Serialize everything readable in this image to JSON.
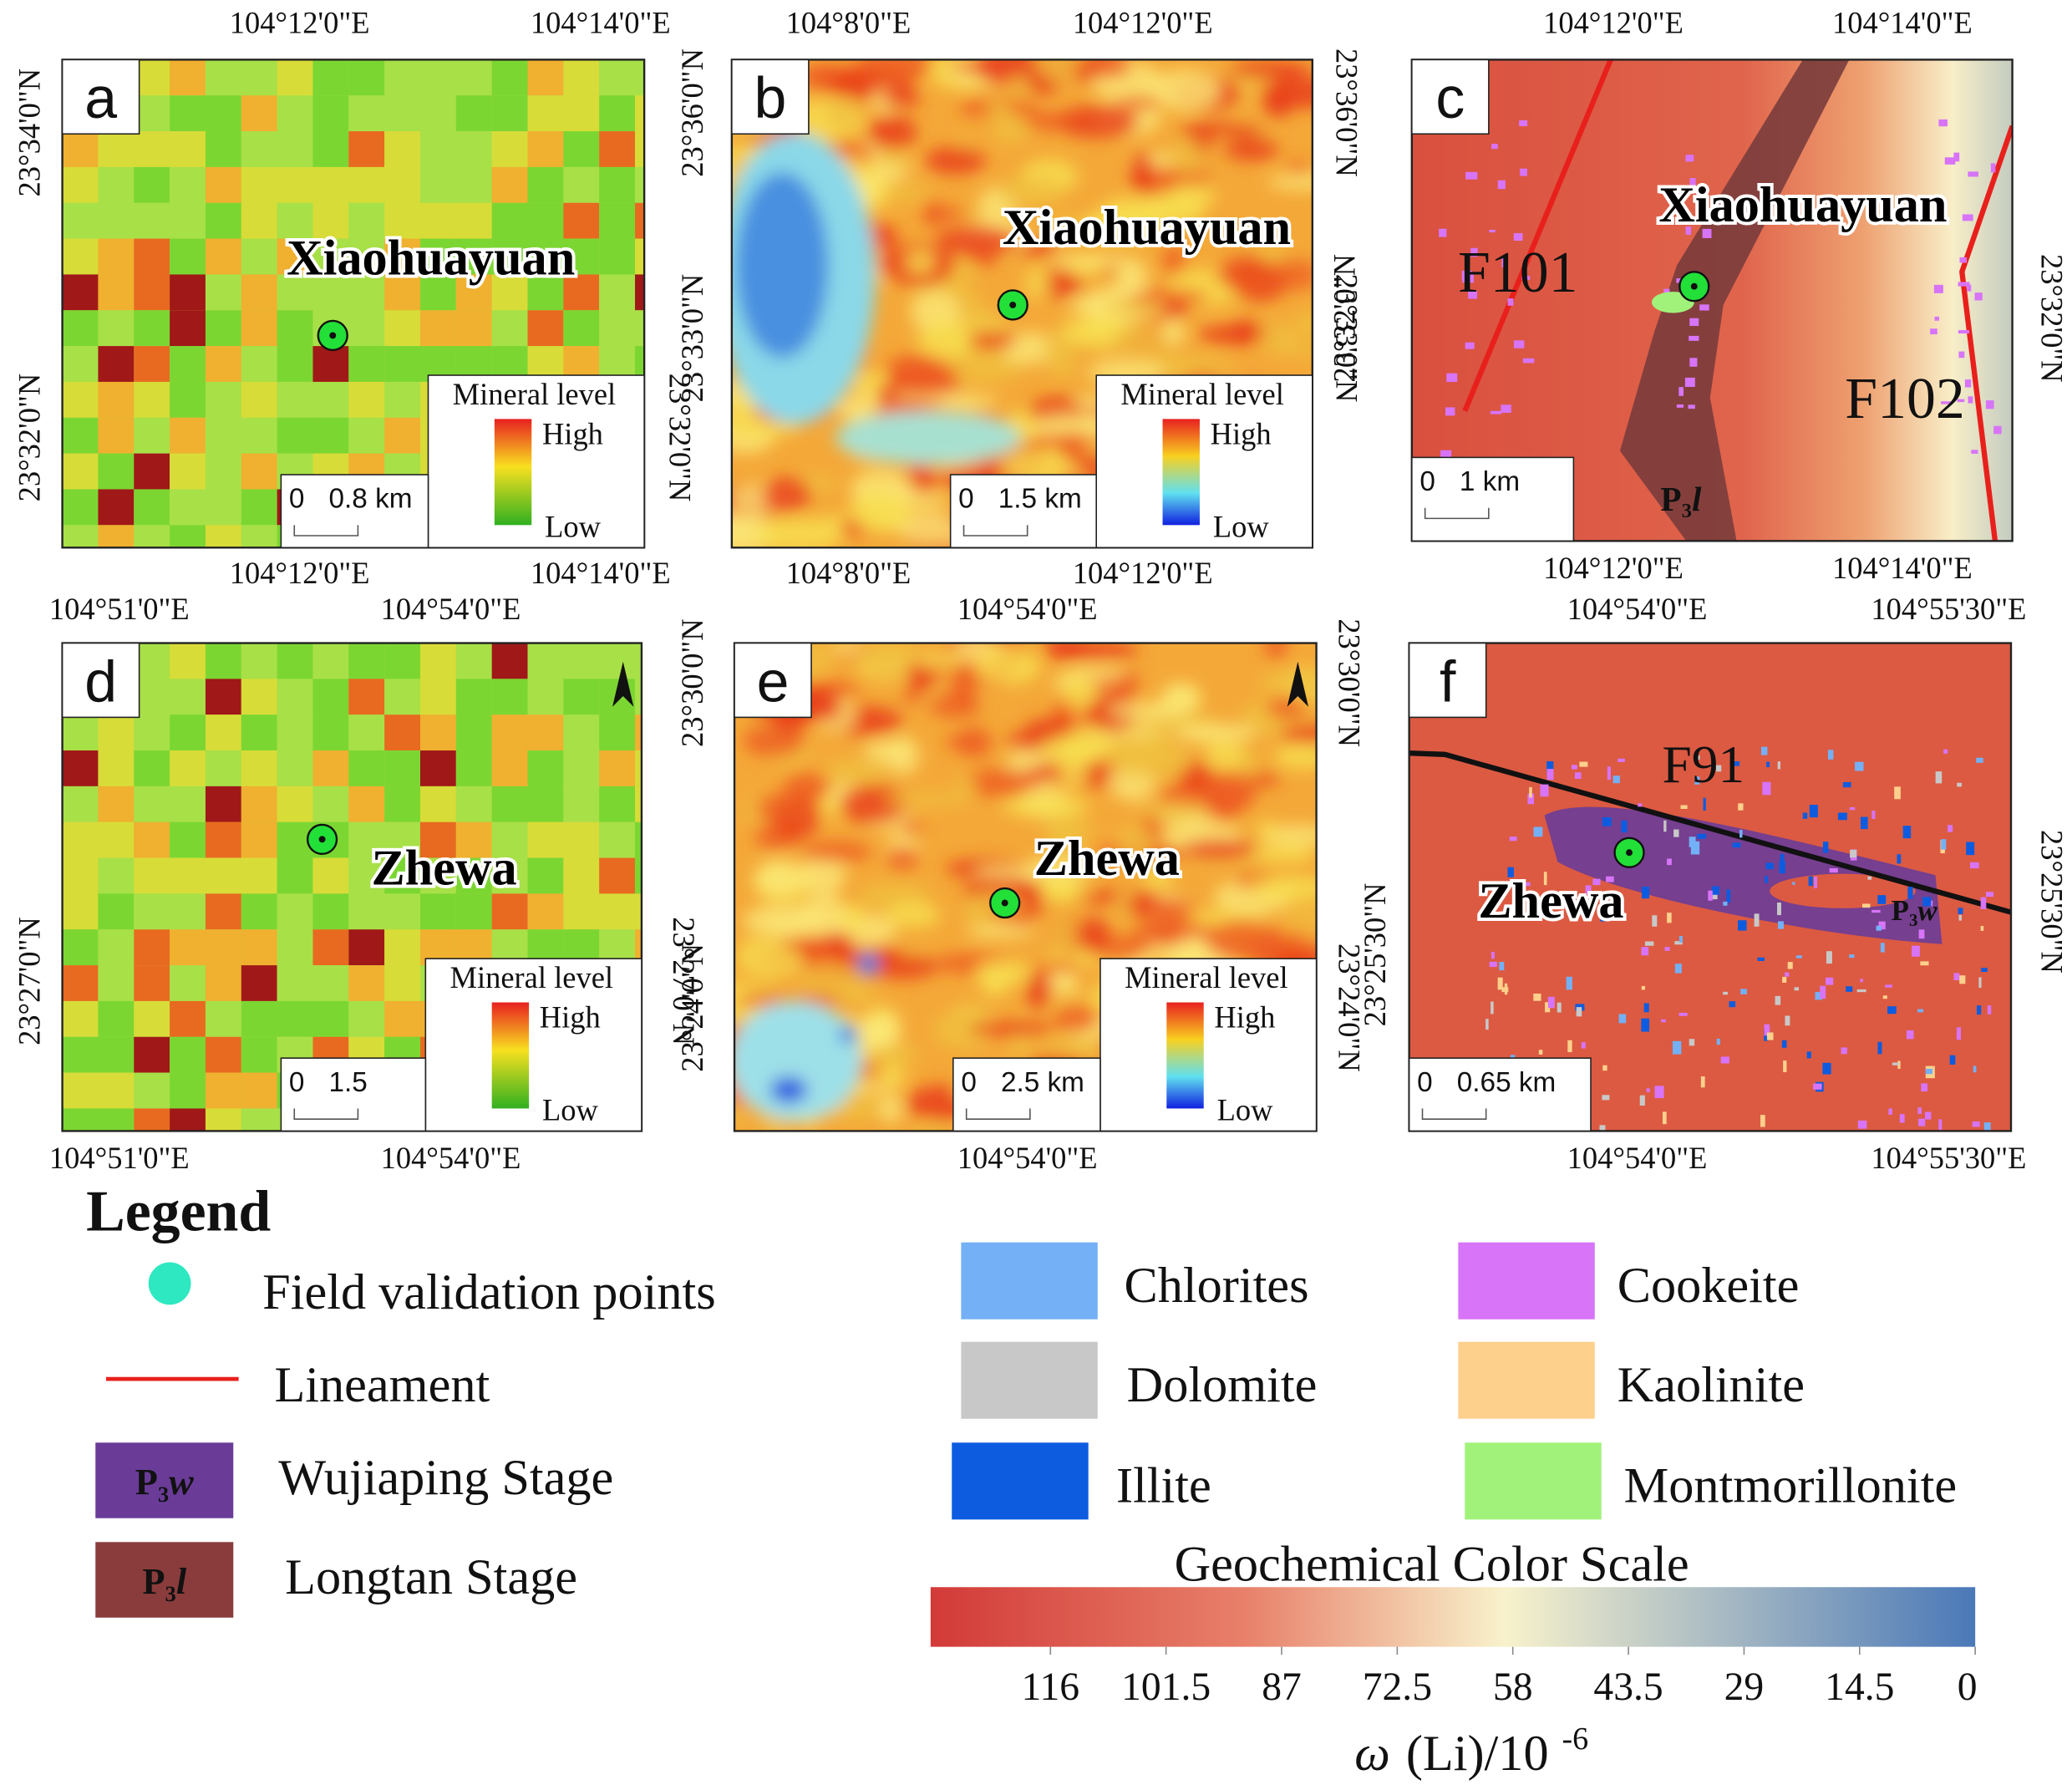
{
  "panels": [
    {
      "label": "a",
      "top_ticks": [
        "104°12'0\"E",
        "104°14'0\"E"
      ],
      "bottom_ticks": [
        "104°12'0\"E",
        "104°14'0\"E"
      ],
      "left_ticks": [
        "23°34'0\"N",
        "23°32'0\"N"
      ],
      "right_ticks": [
        "23°32'0\"N"
      ],
      "site": "Xiaohuayuan",
      "legend": {
        "title": "Mineral level",
        "high": "High",
        "low": "Low"
      },
      "scale": {
        "zero": "0",
        "distance": "0.8 km"
      },
      "annotations": []
    },
    {
      "label": "b",
      "top_ticks": [
        "104°8'0\"E",
        "104°12'0\"E"
      ],
      "bottom_ticks": [
        "104°8'0\"E",
        "104°12'0\"E"
      ],
      "left_ticks": [
        "23°36'0\"N",
        "23°33'0\"N"
      ],
      "right_ticks": [
        "23°36'0\"N",
        "23°33'0\"N"
      ],
      "site": "Xiaohuayuan",
      "legend": {
        "title": "Mineral level",
        "high": "High",
        "low": "Low"
      },
      "scale": {
        "zero": "0",
        "distance": "1.5 km"
      },
      "annotations": []
    },
    {
      "label": "c",
      "top_ticks": [
        "104°12'0\"E",
        "104°14'0\"E"
      ],
      "bottom_ticks": [
        "104°12'0\"E",
        "104°14'0\"E"
      ],
      "left_ticks": [
        "23°32'0\"N"
      ],
      "right_ticks": [
        "23°32'0\"N"
      ],
      "site": "Xiaohuayuan",
      "legend": null,
      "scale": {
        "zero": "0",
        "distance": "1 km"
      },
      "annotations": [
        {
          "text": "F101"
        },
        {
          "text": "F102"
        },
        {
          "main": "P",
          "sub": "3",
          "italic": "l"
        }
      ]
    },
    {
      "label": "d",
      "top_ticks": [
        "104°51'0\"E",
        "104°54'0\"E"
      ],
      "bottom_ticks": [
        "104°51'0\"E",
        "104°54'0\"E"
      ],
      "left_ticks": [
        "23°27'0\"N"
      ],
      "right_ticks": [
        "23°27'0\"N"
      ],
      "site": "Zhewa",
      "legend": {
        "title": "Mineral level",
        "high": "High",
        "low": "Low"
      },
      "scale": {
        "zero": "0",
        "distance": "1.5"
      },
      "annotations": []
    },
    {
      "label": "e",
      "top_ticks": [
        "104°54'0\"E"
      ],
      "bottom_ticks": [
        "104°54'0\"E"
      ],
      "left_ticks": [
        "23°30'0\"N",
        "23°24'0\"N"
      ],
      "right_ticks": [
        "23°30'0\"N",
        "23°24'0\"N"
      ],
      "site": "Zhewa",
      "legend": {
        "title": "Mineral level",
        "high": "High",
        "low": "Low"
      },
      "scale": {
        "zero": "0",
        "distance": "2.5 km"
      },
      "annotations": []
    },
    {
      "label": "f",
      "top_ticks": [
        "104°54'0\"E",
        "104°55'30\"E"
      ],
      "bottom_ticks": [
        "104°54'0\"E",
        "104°55'30\"E"
      ],
      "left_ticks": [
        "23°25'30\"N"
      ],
      "right_ticks": [
        "23°25'30\"N"
      ],
      "site": "Zhewa",
      "legend": null,
      "scale": {
        "zero": "0",
        "distance": "0.65 km"
      },
      "annotations": [
        {
          "text": "F91"
        },
        {
          "main": "P",
          "sub": "3",
          "italic": "w"
        }
      ]
    }
  ],
  "legend": {
    "title": "Legend",
    "items": [
      {
        "label": "Field validation points"
      },
      {
        "label": "Lineament"
      },
      {
        "symbol": {
          "main": "P",
          "sub": "3",
          "italic": "w"
        },
        "label": "Wujiaping Stage"
      },
      {
        "symbol": {
          "main": "P",
          "sub": "3",
          "italic": "l"
        },
        "label": "Longtan Stage"
      }
    ],
    "minerals": [
      {
        "label": "Chlorites",
        "color": "#74b0f6"
      },
      {
        "label": "Dolomite",
        "color": "#c8c8c8"
      },
      {
        "label": "Illite",
        "color": "#0d5ce0"
      },
      {
        "label": "Cookeite",
        "color": "#d774f8"
      },
      {
        "label": "Kaolinite",
        "color": "#fdd08c"
      },
      {
        "label": "Montmorillonite",
        "color": "#a1f27a"
      }
    ]
  },
  "color_scale": {
    "title": "Geochemical Color Scale",
    "ticks": [
      116,
      101.5,
      87,
      72.5,
      58,
      43.5,
      29,
      14.5,
      0
    ],
    "axis_label": {
      "symbol": "ω",
      "text": "(Li)/10",
      "exponent": "-6"
    }
  }
}
